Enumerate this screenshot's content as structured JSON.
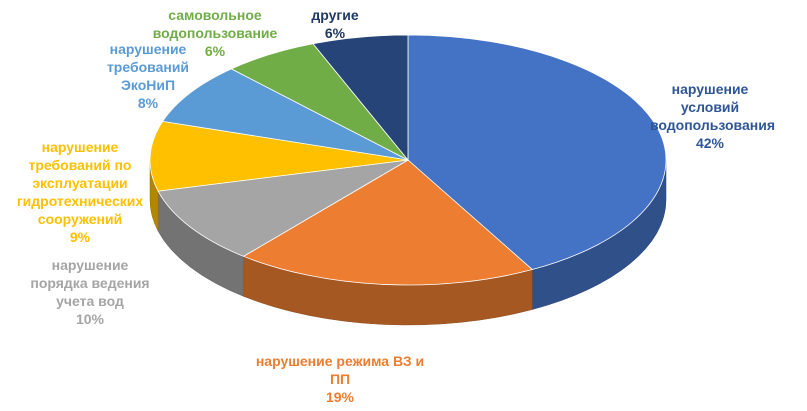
{
  "chart_data": {
    "type": "pie",
    "categories": [
      "нарушение условий водопользования",
      "нарушение режима ВЗ и ПП",
      "нарушение порядка ведения учета вод",
      "нарушение требований по эксплуатации гидротехнических сооружений",
      "нарушение требований ЭкоНиП",
      "самовольное водопользование",
      "другие"
    ],
    "values": [
      42,
      19,
      10,
      9,
      8,
      6,
      6
    ],
    "value_labels": [
      "42%",
      "19%",
      "10%",
      "9%",
      "8%",
      "6%",
      "6%"
    ],
    "colors": [
      "#4472c4",
      "#ed7d31",
      "#a5a5a5",
      "#ffc000",
      "#5b9bd5",
      "#70ad47",
      "#264478"
    ]
  }
}
